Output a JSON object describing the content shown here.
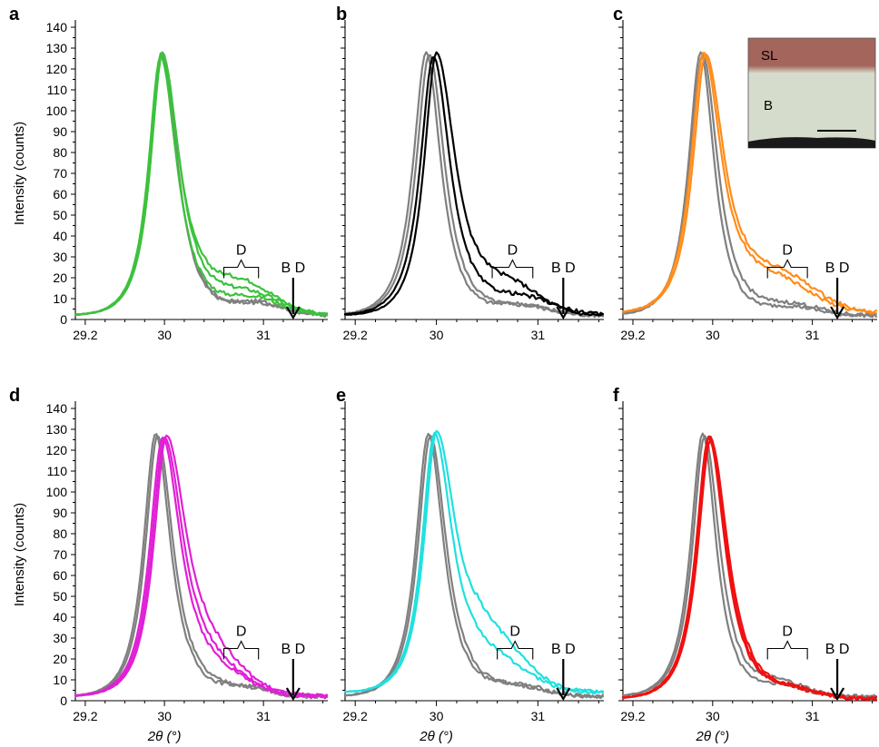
{
  "colors": {
    "reference": "#808080",
    "annotation": "#000000",
    "panel_a": "#3cc23c",
    "panel_b": "#000000",
    "panel_c": "#ff8c1a",
    "panel_d": "#e020d6",
    "panel_e": "#1fe0e0",
    "panel_f": "#f01010"
  },
  "chart_data": [
    {
      "type": "line",
      "panel": "a",
      "series_color": "#3cc23c",
      "ylabel": "Intensity (counts)",
      "xlabel": "",
      "xlim": [
        29.1,
        31.65
      ],
      "ylim": [
        0,
        140
      ],
      "x_ticks": [
        "29.2",
        "30",
        "31"
      ],
      "y_ticks": [
        "0",
        "10",
        "20",
        "30",
        "40",
        "50",
        "60",
        "70",
        "80",
        "90",
        "100",
        "110",
        "120",
        "130",
        "140"
      ],
      "annotations": {
        "bracket_label": "D",
        "bracket_x": [
          30.6,
          30.95
        ],
        "bracket_y": 25,
        "arrow_label": "B D",
        "arrow_x": 31.3,
        "arrow_y": [
          0,
          20
        ]
      },
      "series": [
        {
          "kind": "reference",
          "peak": 29.98,
          "height": 126,
          "w_left": 0.16,
          "w_right": 0.2,
          "shoulder": 6,
          "shoulder_center": 30.95,
          "shoulder_width": 0.35,
          "tail": 2
        },
        {
          "kind": "reference",
          "peak": 29.97,
          "height": 125,
          "w_left": 0.16,
          "w_right": 0.21,
          "shoulder": 5,
          "shoulder_center": 30.95,
          "shoulder_width": 0.4,
          "tail": 2
        },
        {
          "kind": "sample",
          "peak": 29.97,
          "height": 126,
          "w_left": 0.16,
          "w_right": 0.24,
          "shoulder": 14,
          "shoulder_center": 30.8,
          "shoulder_width": 0.45,
          "tail": 2
        },
        {
          "kind": "sample",
          "peak": 29.98,
          "height": 125,
          "w_left": 0.16,
          "w_right": 0.23,
          "shoulder": 10,
          "shoulder_center": 30.85,
          "shoulder_width": 0.45,
          "tail": 2
        },
        {
          "kind": "sample",
          "peak": 29.96,
          "height": 124,
          "w_left": 0.16,
          "w_right": 0.22,
          "shoulder": 8,
          "shoulder_center": 30.9,
          "shoulder_width": 0.4,
          "tail": 2
        }
      ]
    },
    {
      "type": "line",
      "panel": "b",
      "series_color": "#000000",
      "ylabel": "",
      "xlabel": "",
      "xlim": [
        29.1,
        31.65
      ],
      "ylim": [
        0,
        140
      ],
      "x_ticks": [
        "29.2",
        "30",
        "31"
      ],
      "y_ticks": [],
      "annotations": {
        "bracket_label": "D",
        "bracket_x": [
          30.55,
          30.95
        ],
        "bracket_y": 25,
        "arrow_label": "B D",
        "arrow_x": 31.25,
        "arrow_y": [
          0,
          20
        ]
      },
      "series": [
        {
          "kind": "reference",
          "peak": 29.9,
          "height": 126,
          "w_left": 0.17,
          "w_right": 0.19,
          "shoulder": 5,
          "shoulder_center": 30.85,
          "shoulder_width": 0.35,
          "tail": 2
        },
        {
          "kind": "reference",
          "peak": 29.93,
          "height": 125,
          "w_left": 0.17,
          "w_right": 0.2,
          "shoulder": 4,
          "shoulder_center": 30.85,
          "shoulder_width": 0.4,
          "tail": 2
        },
        {
          "kind": "sample",
          "peak": 30.0,
          "height": 126,
          "w_left": 0.16,
          "w_right": 0.25,
          "shoulder": 12,
          "shoulder_center": 30.75,
          "shoulder_width": 0.4,
          "tail": 2
        },
        {
          "kind": "sample",
          "peak": 29.97,
          "height": 124,
          "w_left": 0.17,
          "w_right": 0.22,
          "shoulder": 8,
          "shoulder_center": 30.85,
          "shoulder_width": 0.45,
          "tail": 2
        }
      ]
    },
    {
      "type": "line",
      "panel": "c",
      "series_color": "#ff8c1a",
      "ylabel": "",
      "xlabel": "",
      "xlim": [
        29.1,
        31.65
      ],
      "ylim": [
        0,
        140
      ],
      "x_ticks": [
        "29.2",
        "30",
        "31"
      ],
      "y_ticks": [],
      "annotations": {
        "bracket_label": "D",
        "bracket_x": [
          30.55,
          30.95
        ],
        "bracket_y": 25,
        "arrow_label": "B D",
        "arrow_x": 31.25,
        "arrow_y": [
          0,
          20
        ]
      },
      "series": [
        {
          "kind": "reference",
          "peak": 29.88,
          "height": 126,
          "w_left": 0.16,
          "w_right": 0.18,
          "shoulder": 4,
          "shoulder_center": 30.8,
          "shoulder_width": 0.35,
          "tail": 2
        },
        {
          "kind": "reference",
          "peak": 29.9,
          "height": 125,
          "w_left": 0.17,
          "w_right": 0.2,
          "shoulder": 5,
          "shoulder_center": 30.8,
          "shoulder_width": 0.4,
          "tail": 2
        },
        {
          "kind": "sample",
          "peak": 29.91,
          "height": 125,
          "w_left": 0.17,
          "w_right": 0.24,
          "shoulder": 14,
          "shoulder_center": 30.65,
          "shoulder_width": 0.5,
          "tail": 3
        },
        {
          "kind": "sample",
          "peak": 29.93,
          "height": 124,
          "w_left": 0.17,
          "w_right": 0.25,
          "shoulder": 16,
          "shoulder_center": 30.7,
          "shoulder_width": 0.5,
          "tail": 3
        }
      ]
    },
    {
      "type": "line",
      "panel": "d",
      "series_color": "#e020d6",
      "ylabel": "Intensity (counts)",
      "xlabel": "2θ (°)",
      "xlim": [
        29.1,
        31.65
      ],
      "ylim": [
        0,
        140
      ],
      "x_ticks": [
        "29.2",
        "30",
        "31"
      ],
      "y_ticks": [
        "0",
        "10",
        "20",
        "30",
        "40",
        "50",
        "60",
        "70",
        "80",
        "90",
        "100",
        "110",
        "120",
        "130",
        "140"
      ],
      "annotations": {
        "bracket_label": "D",
        "bracket_x": [
          30.6,
          30.95
        ],
        "bracket_y": 25,
        "arrow_label": "B D",
        "arrow_x": 31.3,
        "arrow_y": [
          0,
          20
        ]
      },
      "series": [
        {
          "kind": "reference",
          "peak": 29.91,
          "height": 126,
          "w_left": 0.16,
          "w_right": 0.2,
          "shoulder": 4,
          "shoulder_center": 30.8,
          "shoulder_width": 0.35,
          "tail": 2
        },
        {
          "kind": "reference",
          "peak": 29.93,
          "height": 125,
          "w_left": 0.16,
          "w_right": 0.21,
          "shoulder": 4,
          "shoulder_center": 30.8,
          "shoulder_width": 0.35,
          "tail": 2
        },
        {
          "kind": "sample",
          "peak": 30.02,
          "height": 125,
          "w_left": 0.17,
          "w_right": 0.28,
          "shoulder": 10,
          "shoulder_center": 30.55,
          "shoulder_width": 0.4,
          "tail": 2
        },
        {
          "kind": "sample",
          "peak": 30.0,
          "height": 124,
          "w_left": 0.17,
          "w_right": 0.26,
          "shoulder": 8,
          "shoulder_center": 30.55,
          "shoulder_width": 0.4,
          "tail": 2
        },
        {
          "kind": "sample",
          "peak": 29.98,
          "height": 124,
          "w_left": 0.17,
          "w_right": 0.25,
          "shoulder": 7,
          "shoulder_center": 30.6,
          "shoulder_width": 0.4,
          "tail": 2
        }
      ]
    },
    {
      "type": "line",
      "panel": "e",
      "series_color": "#1fe0e0",
      "ylabel": "",
      "xlabel": "2θ (°)",
      "xlim": [
        29.1,
        31.65
      ],
      "ylim": [
        0,
        140
      ],
      "x_ticks": [
        "29.2",
        "30",
        "31"
      ],
      "y_ticks": [],
      "annotations": {
        "bracket_label": "D",
        "bracket_x": [
          30.6,
          30.95
        ],
        "bracket_y": 25,
        "arrow_label": "B D",
        "arrow_x": 31.25,
        "arrow_y": [
          0,
          20
        ]
      },
      "series": [
        {
          "kind": "reference",
          "peak": 29.92,
          "height": 126,
          "w_left": 0.16,
          "w_right": 0.2,
          "shoulder": 5,
          "shoulder_center": 30.8,
          "shoulder_width": 0.4,
          "tail": 2
        },
        {
          "kind": "reference",
          "peak": 29.94,
          "height": 125,
          "w_left": 0.16,
          "w_right": 0.21,
          "shoulder": 4,
          "shoulder_center": 30.8,
          "shoulder_width": 0.4,
          "tail": 2
        },
        {
          "kind": "sample",
          "peak": 30.0,
          "height": 125,
          "w_left": 0.16,
          "w_right": 0.26,
          "shoulder": 20,
          "shoulder_center": 30.55,
          "shoulder_width": 0.45,
          "tail": 4
        },
        {
          "kind": "sample",
          "peak": 29.98,
          "height": 124,
          "w_left": 0.16,
          "w_right": 0.24,
          "shoulder": 12,
          "shoulder_center": 30.6,
          "shoulder_width": 0.45,
          "tail": 4
        }
      ]
    },
    {
      "type": "line",
      "panel": "f",
      "series_color": "#f01010",
      "ylabel": "",
      "xlabel": "2θ (°)",
      "xlim": [
        29.1,
        31.65
      ],
      "ylim": [
        0,
        140
      ],
      "x_ticks": [
        "29.2",
        "30",
        "31"
      ],
      "y_ticks": [],
      "annotations": {
        "bracket_label": "D",
        "bracket_x": [
          30.55,
          30.95
        ],
        "bracket_y": 25,
        "arrow_label": "B D",
        "arrow_x": 31.25,
        "arrow_y": [
          0,
          20
        ]
      },
      "series": [
        {
          "kind": "reference",
          "peak": 29.9,
          "height": 126,
          "w_left": 0.16,
          "w_right": 0.18,
          "shoulder": 5,
          "shoulder_center": 30.7,
          "shoulder_width": 0.35,
          "tail": 2
        },
        {
          "kind": "reference",
          "peak": 29.92,
          "height": 125,
          "w_left": 0.16,
          "w_right": 0.2,
          "shoulder": 6,
          "shoulder_center": 30.7,
          "shoulder_width": 0.35,
          "tail": 2
        },
        {
          "kind": "sample",
          "peak": 29.97,
          "height": 126,
          "w_left": 0.17,
          "w_right": 0.22,
          "shoulder": 4,
          "shoulder_center": 30.8,
          "shoulder_width": 0.35,
          "tail": 1
        },
        {
          "kind": "sample",
          "peak": 29.96,
          "height": 125,
          "w_left": 0.17,
          "w_right": 0.22,
          "shoulder": 4,
          "shoulder_center": 30.8,
          "shoulder_width": 0.35,
          "tail": 1
        },
        {
          "kind": "sample",
          "peak": 29.98,
          "height": 124,
          "w_left": 0.17,
          "w_right": 0.23,
          "shoulder": 3,
          "shoulder_center": 30.8,
          "shoulder_width": 0.35,
          "tail": 1
        }
      ]
    }
  ],
  "inset": {
    "panel": "c",
    "top_label": "SL",
    "bottom_label": "B",
    "colors": {
      "top_layer": "#a4655c",
      "bottom_layer": "#d6dccb",
      "base": "#1a1a1a"
    }
  }
}
